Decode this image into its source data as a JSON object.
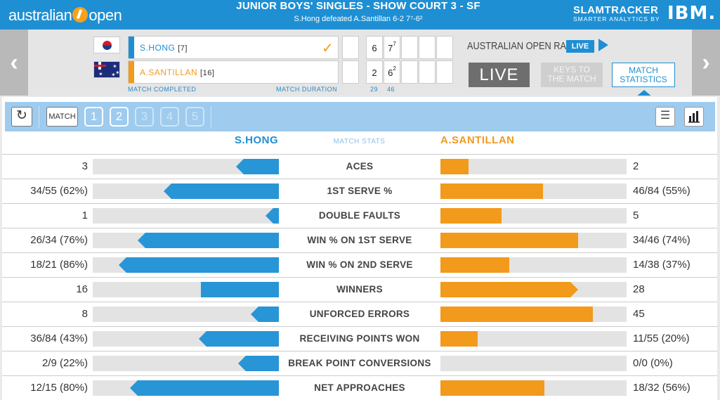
{
  "header": {
    "logo_left": "australian",
    "logo_right": "open",
    "title": "JUNIOR BOYS' SINGLES - SHOW COURT 3 - SF",
    "result": "S.Hong defeated A.Santillan 6-2 7⁷-6²",
    "brand": "SLAMTRACKER",
    "brand_sub": "SMARTER ANALYTICS BY",
    "ibm": "IBM."
  },
  "nav": {
    "prev": "‹",
    "next": "›"
  },
  "scoreboard": {
    "players": [
      {
        "name": "S.HONG",
        "seed": "[7]",
        "flag": "kor",
        "winner": true,
        "sets": [
          "6",
          "7"
        ],
        "tiebreak": [
          "",
          "7"
        ],
        "color": "#1e8fd3"
      },
      {
        "name": "A.SANTILLAN",
        "seed": "[16]",
        "flag": "aus",
        "winner": false,
        "sets": [
          "2",
          "6"
        ],
        "tiebreak": [
          "",
          "2"
        ],
        "color": "#f29a1c"
      }
    ],
    "status": "MATCH COMPLETED",
    "duration_label": "MATCH DURATION",
    "duration_h": "29",
    "duration_m": "46"
  },
  "radio": {
    "label": "AUSTRALIAN OPEN RADIO",
    "badge": "LIVE"
  },
  "tabs": {
    "live": "LIVE",
    "keys_1": "KEYS TO",
    "keys_2": "THE MATCH",
    "stats_1": "MATCH",
    "stats_2": "STATISTICS"
  },
  "toolbar": {
    "match": "MATCH",
    "sets": [
      "1",
      "2",
      "3",
      "4",
      "5"
    ]
  },
  "stats_header": {
    "left": "S.HONG",
    "mid": "MATCH STATS",
    "right": "A.SANTILLAN"
  },
  "colors": {
    "blue": "#2895d6",
    "orange": "#f29a1c"
  },
  "stats": [
    {
      "label": "ACES",
      "left": "3",
      "right": "2",
      "left_pct": 0.23,
      "right_pct": 0.15,
      "left_tip": true,
      "right_tip": false
    },
    {
      "label": "1ST SERVE %",
      "left": "34/55 (62%)",
      "right": "46/84 (55%)",
      "left_pct": 0.62,
      "right_pct": 0.55,
      "left_tip": true,
      "right_tip": false
    },
    {
      "label": "DOUBLE FAULTS",
      "left": "1",
      "right": "5",
      "left_pct": 0.07,
      "right_pct": 0.33,
      "left_tip": true,
      "right_tip": false
    },
    {
      "label": "WIN % ON 1ST SERVE",
      "left": "26/34 (76%)",
      "right": "34/46 (74%)",
      "left_pct": 0.76,
      "right_pct": 0.74,
      "left_tip": true,
      "right_tip": false
    },
    {
      "label": "WIN % ON 2ND SERVE",
      "left": "18/21 (86%)",
      "right": "14/38 (37%)",
      "left_pct": 0.86,
      "right_pct": 0.37,
      "left_tip": true,
      "right_tip": false
    },
    {
      "label": "WINNERS",
      "left": "16",
      "right": "28",
      "left_pct": 0.42,
      "right_pct": 0.74,
      "left_tip": false,
      "right_tip": true
    },
    {
      "label": "UNFORCED ERRORS",
      "left": "8",
      "right": "45",
      "left_pct": 0.15,
      "right_pct": 0.82,
      "left_tip": true,
      "right_tip": false
    },
    {
      "label": "RECEIVING POINTS WON",
      "left": "36/84 (43%)",
      "right": "11/55 (20%)",
      "left_pct": 0.43,
      "right_pct": 0.2,
      "left_tip": true,
      "right_tip": false
    },
    {
      "label": "BREAK POINT CONVERSIONS",
      "left": "2/9 (22%)",
      "right": "0/0 (0%)",
      "left_pct": 0.22,
      "right_pct": 0.0,
      "left_tip": true,
      "right_tip": false
    },
    {
      "label": "NET APPROACHES",
      "left": "12/15 (80%)",
      "right": "18/32 (56%)",
      "left_pct": 0.8,
      "right_pct": 0.56,
      "left_tip": true,
      "right_tip": false
    }
  ]
}
